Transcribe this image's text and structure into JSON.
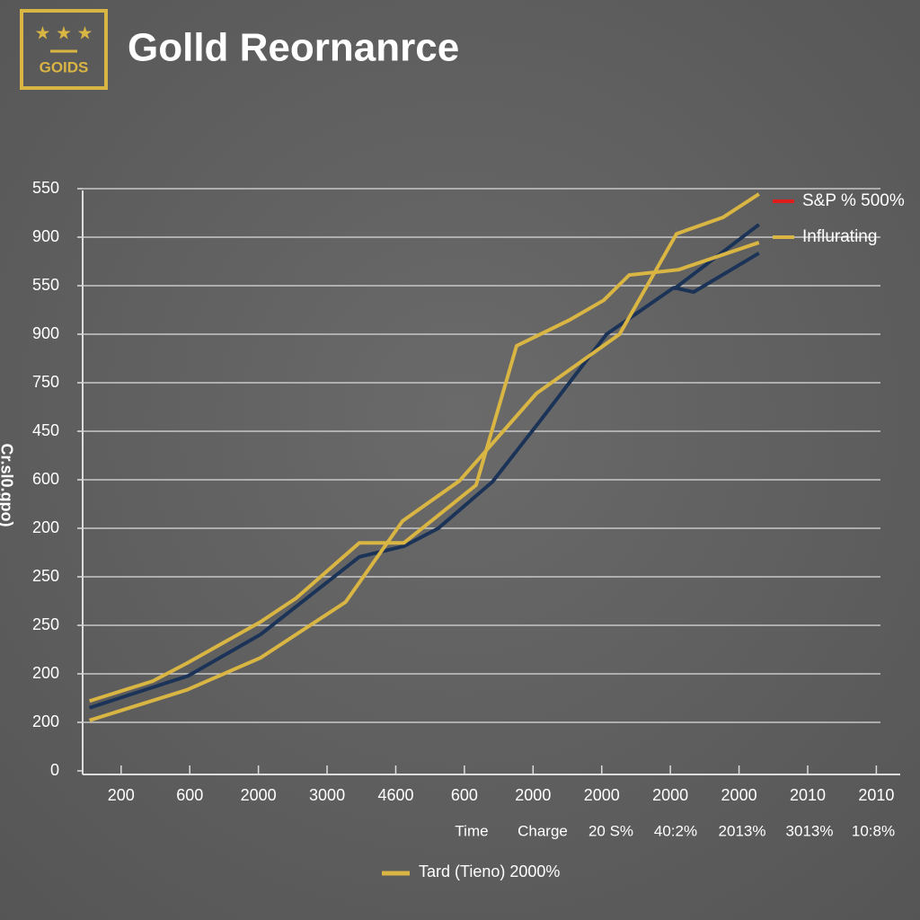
{
  "logo": "GOIDS",
  "chart_data": {
    "type": "line",
    "title": "Golld Reornanrce",
    "y_label": "Cr.sl0.gpo)",
    "categories": [
      "200",
      "600",
      "2000",
      "3000",
      "4600",
      "600",
      "2000",
      "2000",
      "2000",
      "2000",
      "2010",
      "2010"
    ],
    "xlim": [
      -0.56,
      11.06
    ],
    "ylim": [
      0,
      12
    ],
    "yticks": [
      {
        "value": 0,
        "label": "0"
      },
      {
        "value": 1,
        "label": "200"
      },
      {
        "value": 2,
        "label": "200"
      },
      {
        "value": 3,
        "label": "250"
      },
      {
        "value": 4,
        "label": "250"
      },
      {
        "value": 5,
        "label": "200"
      },
      {
        "value": 6,
        "label": "600"
      },
      {
        "value": 7,
        "label": "450"
      },
      {
        "value": 8,
        "label": "750"
      },
      {
        "value": 9,
        "label": "900"
      },
      {
        "value": 10,
        "label": "550"
      },
      {
        "value": 11,
        "label": "900"
      },
      {
        "value": 12,
        "label": "550"
      }
    ],
    "grid": true,
    "second_row": [
      "Time",
      "Charge",
      "20 S%",
      "40:2%",
      "2013%",
      "3013%",
      "10:8%"
    ],
    "legend": [
      {
        "name": "S&P % 500%",
        "color": "#e01b1b"
      },
      {
        "name": "Influrating",
        "color": "#d9b543"
      }
    ],
    "bottom_legend": {
      "name": "Tard (Tieno) 2000%",
      "color": "#d9b543"
    },
    "series": [
      {
        "color": "#1c3358",
        "x": [
          -0.46,
          0.98,
          2.03,
          3.47,
          4.12,
          4.62,
          5.41,
          6.09,
          7.07,
          8.05,
          8.34,
          9.29
        ],
        "values": [
          1.3,
          1.96,
          2.81,
          4.41,
          4.63,
          5.0,
          5.96,
          7.19,
          9.0,
          9.96,
          9.87,
          10.67
        ]
      },
      {
        "color": "#1c3358",
        "x": [
          8.05,
          9.29
        ],
        "values": [
          9.93,
          11.26
        ]
      },
      {
        "color": "#d9b543",
        "x": [
          -0.46,
          0.46,
          0.96,
          2.03,
          2.55,
          3.47,
          4.12,
          5.17,
          5.76,
          6.54,
          7.03,
          7.4,
          8.12,
          9.29
        ],
        "values": [
          1.44,
          1.85,
          2.22,
          3.07,
          3.56,
          4.7,
          4.7,
          5.89,
          8.76,
          9.3,
          9.7,
          10.22,
          10.33,
          10.89
        ]
      },
      {
        "color": "#d9b543",
        "x": [
          -0.46,
          0.96,
          2.03,
          3.27,
          4.1,
          4.93,
          6.05,
          7.26,
          8.09,
          8.77,
          9.29
        ],
        "values": [
          1.04,
          1.67,
          2.33,
          3.48,
          5.15,
          5.98,
          7.78,
          9.0,
          11.07,
          11.41,
          11.89
        ]
      }
    ]
  }
}
